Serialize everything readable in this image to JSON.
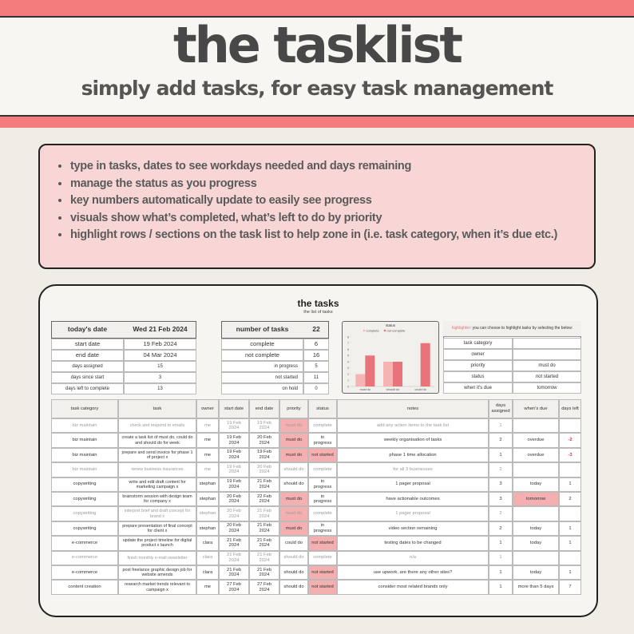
{
  "header": {
    "title": "the tasklist",
    "subtitle": "simply add tasks, for easy task management"
  },
  "features": [
    "type in tasks, dates to see workdays needed and days remaining",
    "manage the status as you progress",
    "key numbers automatically update to easily see progress",
    "visuals show what’s completed, what’s left to do by priority",
    "highlight rows / sections on the task list to help zone in (i.e. task category, when it’s due etc.)"
  ],
  "sheet": {
    "title": "the tasks",
    "subtitle": "the list of tasks",
    "dates": {
      "label": "today's date",
      "value": "Wed 21 Feb 2024",
      "rows": [
        {
          "label": "start date",
          "value": "19 Feb 2024"
        },
        {
          "label": "end date",
          "value": "04 Mar 2024"
        },
        {
          "label": "days assigned",
          "value": 15
        },
        {
          "label": "days since start",
          "value": 3
        },
        {
          "label": "days left to complete",
          "value": 13
        }
      ]
    },
    "counts": {
      "label": "number of tasks",
      "value": 22,
      "rows": [
        {
          "label": "complete",
          "value": 6
        },
        {
          "label": "not complete",
          "value": 16
        },
        {
          "label": "in progress",
          "value": 5
        },
        {
          "label": "not started",
          "value": 11
        },
        {
          "label": "on hold",
          "value": 0
        }
      ]
    },
    "chart": {
      "type": "bar",
      "title": "status",
      "categories": [
        "must do",
        "should do",
        "could do"
      ],
      "series": [
        {
          "name": "complete",
          "color": "#f5b3b3",
          "values": [
            2,
            4,
            0
          ]
        },
        {
          "name": "not complete",
          "color": "#e8737a",
          "values": [
            5,
            4,
            7
          ]
        }
      ],
      "ylim": [
        0,
        8
      ],
      "yticks": [
        0,
        1,
        2,
        3,
        4,
        5,
        6,
        7,
        8
      ]
    },
    "highlighter": {
      "label": "highlighter",
      "text": ": you can choose to highlight tasks by selecting the below:",
      "rows": [
        {
          "label": "task category"
        },
        {
          "label": "owner"
        },
        {
          "label": "priority",
          "value": "must do"
        },
        {
          "label": "status",
          "value": "not started"
        },
        {
          "label": "when it's due",
          "value": "tomorrow"
        }
      ]
    },
    "table": {
      "columns": [
        "task category",
        "task",
        "owner",
        "start date",
        "end date",
        "priority",
        "status",
        "notes",
        "days assigned",
        "when's due",
        "days left"
      ],
      "rows": [
        {
          "category": "biz maintain",
          "task": "check and respond to emails",
          "owner": "me",
          "start": "19 Feb 2024",
          "end": "19 Feb 2024",
          "priority": "must do",
          "status": "complete",
          "notes": "add any action items to the task list",
          "days_assigned": 1
        },
        {
          "category": "biz maintain",
          "task": "create a task list of must do, could do and should do for week",
          "owner": "me",
          "start": "19 Feb 2024",
          "end": "20 Feb 2024",
          "priority": "must do",
          "status": "in progress",
          "notes": "weekly organisation of tasks",
          "days_assigned": 2,
          "due": "overdue",
          "days_left": -2
        },
        {
          "category": "biz maintain",
          "task": "prepare and send invoice for phase 1 of project x",
          "owner": "me",
          "start": "19 Feb 2024",
          "end": "19 Feb 2024",
          "priority": "must do",
          "status": "not started",
          "notes": "phase 1 time allocation",
          "days_assigned": 1,
          "due": "overdue",
          "days_left": -3
        },
        {
          "category": "biz maintain",
          "task": "renew business insurances",
          "owner": "me",
          "start": "19 Feb 2024",
          "end": "20 Feb 2024",
          "priority": "should do",
          "status": "complete",
          "notes": "for all 3 businesses",
          "days_assigned": 2
        },
        {
          "category": "copywriting",
          "task": "write and edit draft content for marketing campaign x",
          "owner": "stephan",
          "start": "19 Feb 2024",
          "end": "21 Feb 2024",
          "priority": "should do",
          "status": "in progress",
          "notes": "1 pager proposal",
          "days_assigned": 3,
          "due": "today",
          "days_left": 1
        },
        {
          "category": "copywriting",
          "task": "brainstorm session with design team for company x",
          "owner": "stephan",
          "start": "20 Feb 2024",
          "end": "22 Feb 2024",
          "priority": "must do",
          "status": "in progress",
          "notes": "have actionable outcomes",
          "days_assigned": 3,
          "due": "tomorrow",
          "days_left": 2
        },
        {
          "category": "copywriting",
          "task": "interpret brief and draft concept for brand x",
          "owner": "stephan",
          "start": "20 Feb 2024",
          "end": "21 Feb 2024",
          "priority": "must do",
          "status": "complete",
          "notes": "1 pager proposal",
          "days_assigned": 2
        },
        {
          "category": "copywriting",
          "task": "prepare presentation of final concept for client x",
          "owner": "stephan",
          "start": "20 Feb 2024",
          "end": "21 Feb 2024",
          "priority": "must do",
          "status": "in progress",
          "notes": "video section remaining",
          "days_assigned": 2,
          "due": "today",
          "days_left": 1
        },
        {
          "category": "e-commerce",
          "task": "update the project timeline for digital product x launch",
          "owner": "clara",
          "start": "21 Feb 2024",
          "end": "21 Feb 2024",
          "priority": "could do",
          "status": "not started",
          "notes": "testing dates to be changed",
          "days_assigned": 1,
          "due": "today",
          "days_left": 1
        },
        {
          "category": "e-commerce",
          "task": "finish monthly e-mail newsletter",
          "owner": "clara",
          "start": "21 Feb 2024",
          "end": "21 Feb 2024",
          "priority": "should do",
          "status": "complete",
          "notes": "n/a",
          "days_assigned": 1
        },
        {
          "category": "e-commerce",
          "task": "post freelance graphic design job for website amends",
          "owner": "clara",
          "start": "21 Feb 2024",
          "end": "21 Feb 2024",
          "priority": "should do",
          "status": "not started",
          "notes": "use upwork, are there any other sites?",
          "days_assigned": 1,
          "due": "today",
          "days_left": 1
        },
        {
          "category": "content creation",
          "task": "research market trends relevant to campaign x",
          "owner": "me",
          "start": "27 Feb 2024",
          "end": "27 Feb 2024",
          "priority": "should do",
          "status": "not started",
          "notes": "consider most related brands only",
          "days_assigned": 1,
          "due": "more than 5 days",
          "days_left": 7
        }
      ]
    }
  }
}
